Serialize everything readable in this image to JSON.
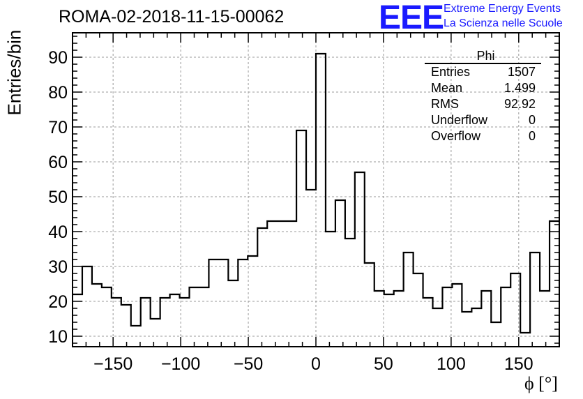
{
  "header": {
    "run_title": "ROMA-02-2018-11-15-00062",
    "logo_text": "EEE",
    "brand_line1": "Extreme Energy Events",
    "brand_line2": "La Scienza nelle Scuole"
  },
  "stats_box": {
    "title": "Phi",
    "rows": [
      {
        "label": "Entries",
        "value": "1507"
      },
      {
        "label": "Mean",
        "value": "1.499"
      },
      {
        "label": "RMS",
        "value": "92.92"
      },
      {
        "label": "Underflow",
        "value": "0"
      },
      {
        "label": "Overflow",
        "value": "0"
      }
    ]
  },
  "colors": {
    "line": "#000000",
    "grid": "#999999",
    "brand": "#1a1aff"
  },
  "chart_data": {
    "type": "histogram",
    "title": "ROMA-02-2018-11-15-00062",
    "xlabel": "ϕ [°]",
    "ylabel": "Entries/bin",
    "xlim": [
      -180,
      180
    ],
    "ylim": [
      7,
      97
    ],
    "bin_width": 7.2,
    "x_ticks": [
      -150,
      -100,
      -50,
      0,
      50,
      100,
      150
    ],
    "x_tick_labels": [
      "−150",
      "−100",
      "−50",
      "0",
      "50",
      "100",
      "150"
    ],
    "y_ticks": [
      10,
      20,
      30,
      40,
      50,
      60,
      70,
      80,
      90
    ],
    "y_tick_labels": [
      "10",
      "20",
      "30",
      "40",
      "50",
      "60",
      "70",
      "80",
      "90"
    ],
    "grid": true,
    "values": [
      22,
      30,
      25,
      24,
      21,
      19,
      13,
      21,
      15,
      21,
      22,
      21,
      24,
      24,
      32,
      32,
      26,
      32,
      33,
      41,
      43,
      43,
      43,
      69,
      52,
      91,
      40,
      49,
      38,
      57,
      31,
      23,
      22,
      23,
      34,
      28,
      21,
      18,
      24,
      25,
      17,
      18,
      23,
      14,
      24,
      28,
      11,
      34,
      23,
      43
    ]
  }
}
